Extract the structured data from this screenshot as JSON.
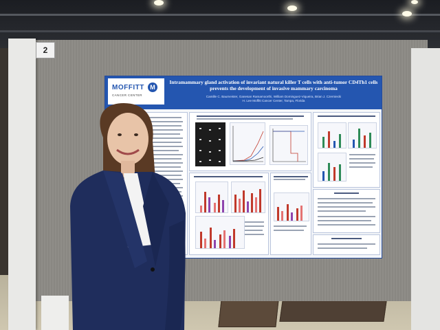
{
  "booth": {
    "number": "2"
  },
  "poster": {
    "title_line1": "Intramammary gland activation of  invariant natural killer T cells with anti-tumor CD4Th1 cells",
    "title_line2": "prevents the development of invasive mammary carcinoma",
    "authors": "Camille C. Baumeister, Ganesan Ramamoorthi, William Dominguez-Viqueira, Brian J. Czerniecki",
    "affiliation": "H. Lee Moffitt Cancer Center, Tampa, Florida",
    "logo": {
      "name": "MOFFITT",
      "mark": "M",
      "subtitle": "CANCER CENTER"
    },
    "accent_color": "#2456b0"
  }
}
